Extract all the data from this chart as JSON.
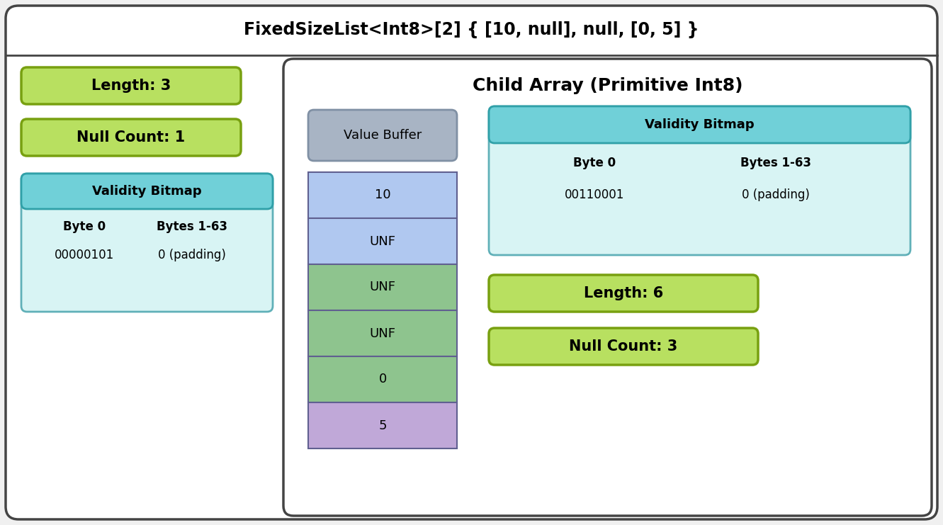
{
  "title": "FixedSizeList<Int8>[2] { [10, null], null, [0, 5] }",
  "title_fontsize": 17,
  "left_length_label": "Length: 3",
  "left_null_label": "Null Count: 1",
  "left_validity_title": "Validity Bitmap",
  "left_validity_col1_header": "Byte 0",
  "left_validity_col2_header": "Bytes 1-63",
  "left_validity_col1_val": "00000101",
  "left_validity_col2_val": "0 (padding)",
  "child_title": "Child Array (Primitive Int8)",
  "value_buffer_label": "Value Buffer",
  "buffer_cells": [
    "10",
    "UNF",
    "UNF",
    "UNF",
    "0",
    "5"
  ],
  "buffer_cell_colors": [
    "#b0c8f0",
    "#b0c8f0",
    "#8ec48e",
    "#8ec48e",
    "#8ec48e",
    "#c0a8d8"
  ],
  "right_validity_title": "Validity Bitmap",
  "right_validity_col1_header": "Byte 0",
  "right_validity_col2_header": "Bytes 1-63",
  "right_validity_col1_val": "00110001",
  "right_validity_col2_val": "0 (padding)",
  "right_length_label": "Length: 6",
  "right_null_label": "Null Count: 3",
  "green_fill": "#b8e060",
  "green_stroke": "#78a010",
  "teal_header_fill_top": "#70d0d8",
  "teal_header_fill_bot": "#40b8c0",
  "teal_header_stroke": "#30a0a8",
  "teal_body_fill": "#d8f4f4",
  "teal_body_stroke": "#60b0b8",
  "gray_fill": "#a8b4c4",
  "gray_stroke": "#8090a4",
  "outer_fill": "#ffffff",
  "outer_stroke": "#444444",
  "bg_color": "#f0f0f0"
}
